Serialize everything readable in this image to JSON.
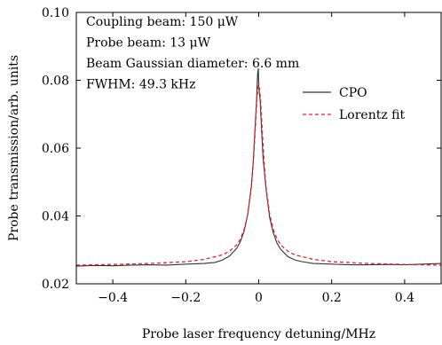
{
  "chart_data": {
    "type": "line",
    "xlabel": "Probe laser frequency detuning/MHz",
    "ylabel": "Probe transmission/arb. units",
    "xlim": [
      -0.5,
      0.5
    ],
    "ylim": [
      0.02,
      0.1
    ],
    "xticks": [
      -0.4,
      -0.2,
      0,
      0.2,
      0.4
    ],
    "xtick_labels": [
      "−0.4",
      "−0.2",
      "0",
      "0.2",
      "0.4"
    ],
    "yticks": [
      0.02,
      0.04,
      0.06,
      0.08,
      0.1
    ],
    "ytick_labels": [
      "0.02",
      "0.04",
      "0.06",
      "0.08",
      "0.10"
    ],
    "grid": false,
    "legend_position": "right",
    "annotations": [
      "Coupling beam: 150 μW",
      "Probe beam: 13 μW",
      "Beam Gaussian diameter: 6.6 mm",
      "FWHM: 49.3 kHz"
    ],
    "series": [
      {
        "name": "CPO",
        "color": "#333333",
        "style": "solid",
        "x": [
          -0.5,
          -0.45,
          -0.4,
          -0.35,
          -0.3,
          -0.25,
          -0.2,
          -0.15,
          -0.12,
          -0.1,
          -0.08,
          -0.06,
          -0.05,
          -0.04,
          -0.03,
          -0.02,
          -0.015,
          -0.01,
          -0.006,
          -0.003,
          -0.001,
          0.0,
          0.002,
          0.004,
          0.008,
          0.012,
          0.02,
          0.03,
          0.04,
          0.05,
          0.06,
          0.08,
          0.1,
          0.12,
          0.15,
          0.2,
          0.25,
          0.3,
          0.35,
          0.4,
          0.45,
          0.5
        ],
        "y": [
          0.0252,
          0.0254,
          0.0253,
          0.0255,
          0.0256,
          0.0255,
          0.0258,
          0.026,
          0.0263,
          0.027,
          0.0282,
          0.0305,
          0.0325,
          0.0355,
          0.0405,
          0.049,
          0.056,
          0.066,
          0.074,
          0.082,
          0.0835,
          0.078,
          0.076,
          0.074,
          0.065,
          0.057,
          0.048,
          0.0395,
          0.035,
          0.032,
          0.0302,
          0.028,
          0.027,
          0.0265,
          0.026,
          0.0258,
          0.0256,
          0.0256,
          0.0257,
          0.0256,
          0.0258,
          0.026
        ]
      },
      {
        "name": "Lorentz fit",
        "color": "#e8232a",
        "style": "dashed",
        "x": [
          -0.5,
          -0.4,
          -0.3,
          -0.2,
          -0.15,
          -0.1,
          -0.08,
          -0.06,
          -0.05,
          -0.04,
          -0.03,
          -0.02,
          -0.015,
          -0.01,
          -0.005,
          0.0,
          0.005,
          0.01,
          0.015,
          0.02,
          0.03,
          0.04,
          0.05,
          0.06,
          0.08,
          0.1,
          0.15,
          0.2,
          0.3,
          0.4,
          0.5
        ],
        "y": [
          0.0255,
          0.0257,
          0.026,
          0.0265,
          0.0272,
          0.0285,
          0.0296,
          0.0315,
          0.0333,
          0.036,
          0.0405,
          0.0485,
          0.0555,
          0.0645,
          0.0745,
          0.0795,
          0.0745,
          0.0645,
          0.0555,
          0.0485,
          0.0405,
          0.036,
          0.0333,
          0.0315,
          0.0296,
          0.0285,
          0.0272,
          0.0265,
          0.026,
          0.0257,
          0.0255
        ]
      }
    ]
  }
}
